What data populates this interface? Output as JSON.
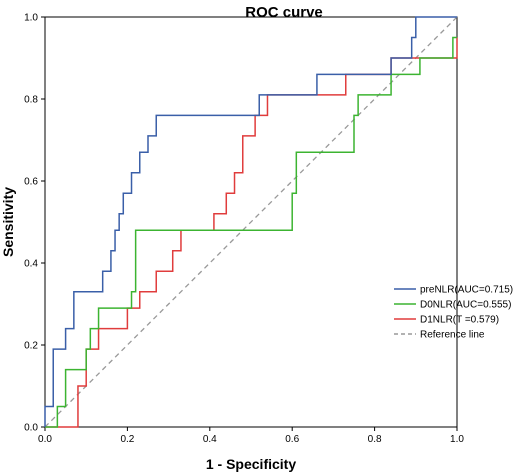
{
  "chart_data": {
    "type": "line",
    "title": "ROC curve",
    "xlabel": "1 - Specificity",
    "ylabel": "Sensitivity",
    "xlim": [
      0,
      1
    ],
    "ylim": [
      0,
      1
    ],
    "xticks": [
      "0.0",
      "0.2",
      "0.4",
      "0.6",
      "0.8",
      "1.0"
    ],
    "yticks": [
      "0.0",
      "0.2",
      "0.4",
      "0.6",
      "0.8",
      "1.0"
    ],
    "grid": false,
    "legend_position": "right",
    "series": [
      {
        "name": "preNLR(AUC=0.715)",
        "color": "#3a5fa8",
        "x": [
          0,
          0,
          0.02,
          0.02,
          0.05,
          0.05,
          0.07,
          0.07,
          0.14,
          0.14,
          0.16,
          0.16,
          0.17,
          0.17,
          0.18,
          0.18,
          0.19,
          0.19,
          0.21,
          0.21,
          0.23,
          0.23,
          0.25,
          0.25,
          0.27,
          0.27,
          0.3,
          0.3,
          0.33,
          0.33,
          0.35,
          0.35,
          0.38,
          0.38,
          0.52,
          0.52,
          0.66,
          0.66,
          0.84,
          0.84,
          0.89,
          0.89,
          0.9,
          0.9,
          1.0
        ],
        "y": [
          0,
          0.05,
          0.05,
          0.19,
          0.19,
          0.24,
          0.24,
          0.33,
          0.33,
          0.38,
          0.38,
          0.43,
          0.43,
          0.48,
          0.48,
          0.52,
          0.52,
          0.57,
          0.57,
          0.62,
          0.62,
          0.67,
          0.67,
          0.71,
          0.71,
          0.76,
          0.76,
          0.76,
          0.76,
          0.76,
          0.76,
          0.76,
          0.76,
          0.76,
          0.76,
          0.81,
          0.81,
          0.86,
          0.86,
          0.9,
          0.9,
          0.95,
          0.95,
          1.0,
          1.0
        ]
      },
      {
        "name": "D0NLR(AUC=0.555)",
        "color": "#3cb431",
        "x": [
          0,
          0.03,
          0.03,
          0.05,
          0.05,
          0.1,
          0.1,
          0.11,
          0.11,
          0.13,
          0.13,
          0.21,
          0.21,
          0.22,
          0.22,
          0.41,
          0.41,
          0.6,
          0.6,
          0.61,
          0.61,
          0.75,
          0.75,
          0.76,
          0.76,
          0.84,
          0.84,
          0.91,
          0.91,
          0.99,
          0.99,
          1.0
        ],
        "y": [
          0,
          0,
          0.05,
          0.05,
          0.14,
          0.14,
          0.19,
          0.19,
          0.24,
          0.24,
          0.29,
          0.29,
          0.33,
          0.33,
          0.48,
          0.48,
          0.48,
          0.48,
          0.57,
          0.57,
          0.67,
          0.67,
          0.76,
          0.76,
          0.81,
          0.81,
          0.86,
          0.86,
          0.9,
          0.9,
          0.95,
          0.95
        ]
      },
      {
        "name": "D1NLR(T =0.579)",
        "color": "#e03c3c",
        "x": [
          0,
          0.08,
          0.08,
          0.1,
          0.1,
          0.13,
          0.13,
          0.16,
          0.16,
          0.2,
          0.2,
          0.23,
          0.23,
          0.27,
          0.27,
          0.31,
          0.31,
          0.33,
          0.33,
          0.41,
          0.41,
          0.44,
          0.44,
          0.46,
          0.46,
          0.48,
          0.48,
          0.51,
          0.51,
          0.54,
          0.54,
          0.73,
          0.73,
          0.84,
          0.84,
          1.0,
          1.0
        ],
        "y": [
          0,
          0,
          0.1,
          0.1,
          0.19,
          0.19,
          0.24,
          0.24,
          0.24,
          0.24,
          0.29,
          0.29,
          0.33,
          0.33,
          0.38,
          0.38,
          0.43,
          0.43,
          0.48,
          0.48,
          0.52,
          0.52,
          0.57,
          0.57,
          0.62,
          0.62,
          0.71,
          0.71,
          0.76,
          0.76,
          0.81,
          0.81,
          0.86,
          0.86,
          0.9,
          0.9,
          0.95
        ]
      },
      {
        "name": "Reference line",
        "color": "#999999",
        "dashed": true,
        "x": [
          0,
          1
        ],
        "y": [
          0,
          1
        ]
      }
    ]
  }
}
